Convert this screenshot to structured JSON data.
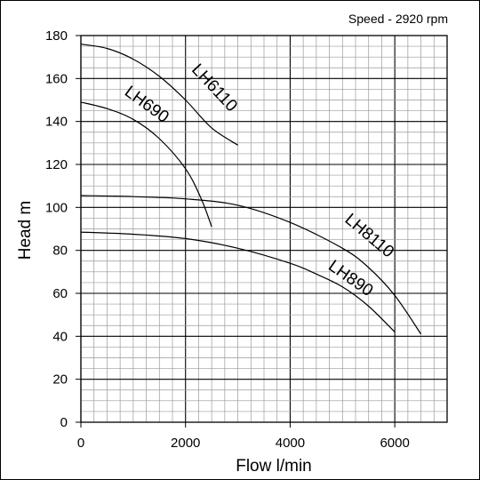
{
  "chart_data": {
    "type": "line",
    "annotation": "Speed - 2920 rpm",
    "xlabel": "Flow l/min",
    "ylabel": "Head m",
    "xlim": [
      0,
      7000
    ],
    "ylim": [
      0,
      180
    ],
    "x_ticks": [
      "0",
      "2000",
      "4000",
      "6000"
    ],
    "y_ticks": [
      "0",
      "20",
      "40",
      "60",
      "80",
      "100",
      "120",
      "140",
      "160",
      "180"
    ],
    "grid": true,
    "series": [
      {
        "name": "LH6110",
        "x": [
          0,
          500,
          1000,
          1500,
          2000,
          2500,
          3000
        ],
        "y": [
          176,
          174,
          169,
          161,
          150,
          137,
          129
        ]
      },
      {
        "name": "LH690",
        "x": [
          0,
          500,
          1000,
          1500,
          2000,
          2300,
          2500
        ],
        "y": [
          149,
          146,
          141,
          132,
          118,
          104,
          91
        ]
      },
      {
        "name": "LH8110",
        "x": [
          0,
          1000,
          2000,
          3000,
          4000,
          5000,
          5500,
          6000,
          6500
        ],
        "y": [
          105.5,
          105,
          104,
          101,
          93,
          81,
          72,
          59,
          41
        ]
      },
      {
        "name": "LH890",
        "x": [
          0,
          1000,
          2000,
          3000,
          4000,
          4500,
          5000,
          5500,
          6000
        ],
        "y": [
          88.5,
          87.5,
          85.5,
          81,
          74,
          69,
          63,
          54,
          42
        ]
      }
    ]
  }
}
